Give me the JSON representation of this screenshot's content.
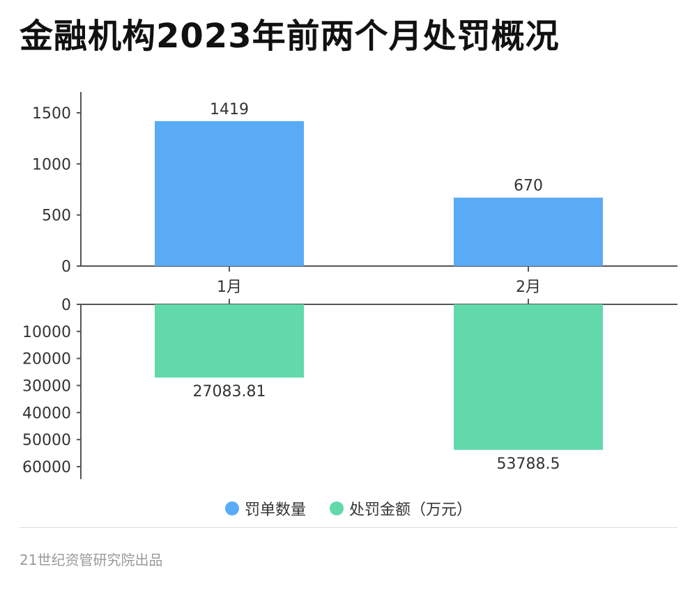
{
  "title": "金融机构2023年前两个月处罚概况",
  "footer": "21世纪资管研究院出品",
  "chart_data": {
    "type": "bar",
    "title": "金融机构2023年前两个月处罚概况",
    "categories": [
      "1月",
      "2月"
    ],
    "series": [
      {
        "name": "罚单数量",
        "values": [
          1419,
          670
        ],
        "labels": [
          "1419",
          "670"
        ],
        "color": "#5aabf5"
      },
      {
        "name": "处罚金额（万元）",
        "values": [
          27083.81,
          53788.5
        ],
        "labels": [
          "27083.81",
          "53788.5"
        ],
        "color": "#62d9ab"
      }
    ],
    "top_axis": {
      "ticks": [
        0,
        500,
        1000,
        1500
      ],
      "tick_labels": [
        "0",
        "500",
        "1000",
        "1500"
      ]
    },
    "bottom_axis": {
      "inverted": true,
      "ticks": [
        0,
        10000,
        20000,
        30000,
        40000,
        50000,
        60000
      ],
      "tick_labels": [
        "0",
        "10000",
        "20000",
        "30000",
        "40000",
        "50000",
        "60000"
      ]
    },
    "legend_position": "bottom-center",
    "grid": false
  }
}
